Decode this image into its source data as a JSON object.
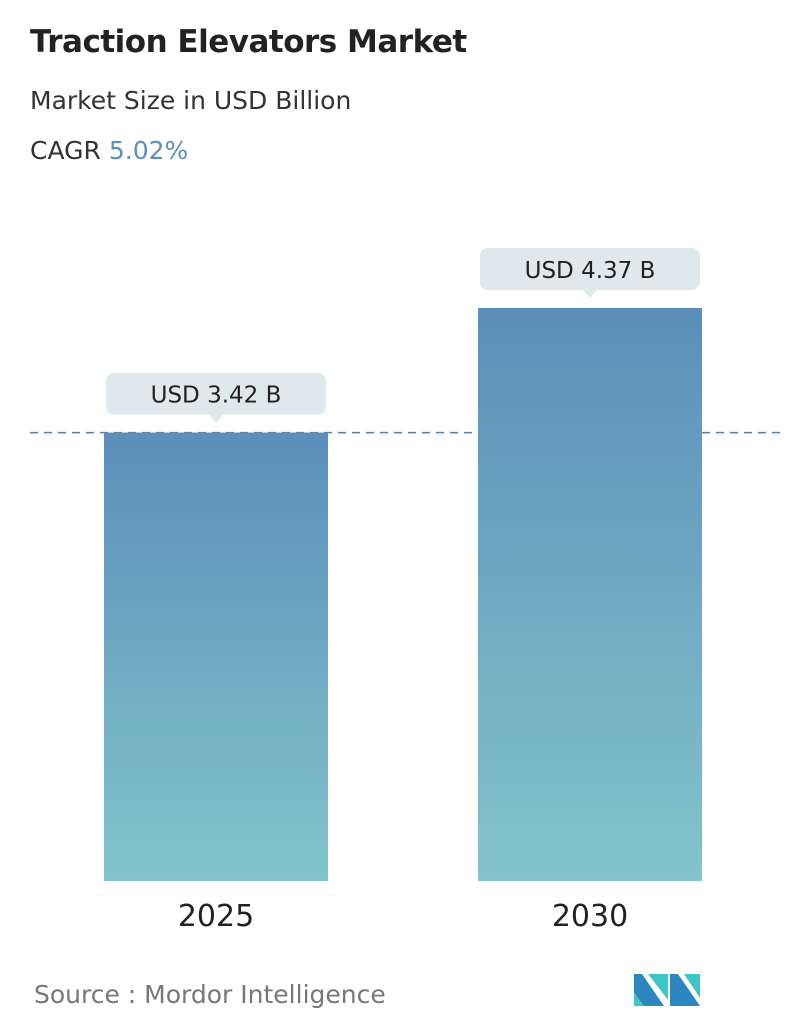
{
  "title": "Traction Elevators Market",
  "subtitle": "Market Size in USD Billion",
  "cagr_label": "CAGR",
  "cagr_value": "5.02%",
  "source": "Source :  Mordor Intelligence",
  "logo_text": "Mordor Intelligence",
  "colors": {
    "bar_top": "#5b8fba",
    "bar_bottom": "#82c4cb",
    "cagr": "#5b8fba",
    "callout": "#dfe8ea",
    "dashed": "#5b7fa0"
  },
  "chart_data": {
    "type": "bar",
    "categories": [
      "2025",
      "2030"
    ],
    "values": [
      3.42,
      4.37
    ],
    "data_labels": [
      "USD 3.42 B",
      "USD 4.37 B"
    ],
    "ylim": [
      0,
      4.37
    ],
    "grid": false,
    "reference_line": 3.42
  }
}
